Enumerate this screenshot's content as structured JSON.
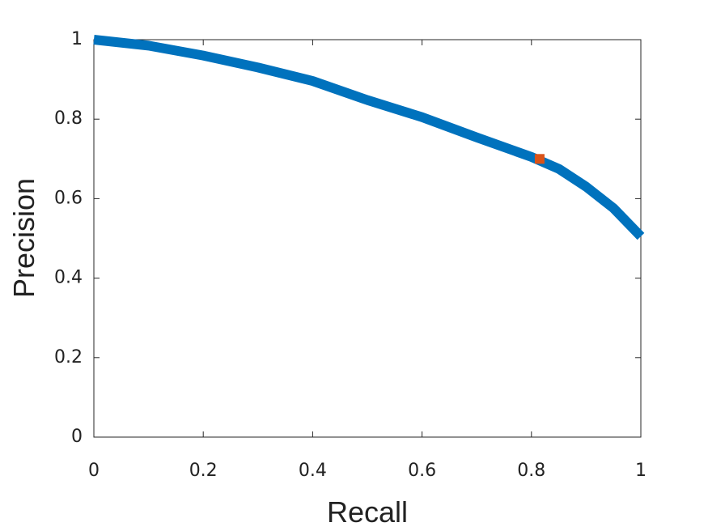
{
  "chart_data": {
    "type": "line",
    "xlabel": "Recall",
    "ylabel": "Precision",
    "xlim": [
      0,
      1
    ],
    "ylim": [
      0,
      1
    ],
    "xticks": [
      0,
      0.2,
      0.4,
      0.6,
      0.8,
      1
    ],
    "yticks": [
      0,
      0.2,
      0.4,
      0.6,
      0.8,
      1
    ],
    "grid": false,
    "series": [
      {
        "color": "#0072bd",
        "x": [
          0,
          0.1,
          0.2,
          0.3,
          0.4,
          0.5,
          0.6,
          0.7,
          0.8,
          0.85,
          0.9,
          0.95,
          1
        ],
        "values": [
          1.0,
          0.985,
          0.96,
          0.93,
          0.896,
          0.848,
          0.805,
          0.754,
          0.705,
          0.675,
          0.63,
          0.576,
          0.505
        ]
      },
      {
        "color": "#d95319",
        "x": [
          0.815
        ],
        "values": [
          0.7
        ],
        "marker": "square"
      }
    ]
  }
}
